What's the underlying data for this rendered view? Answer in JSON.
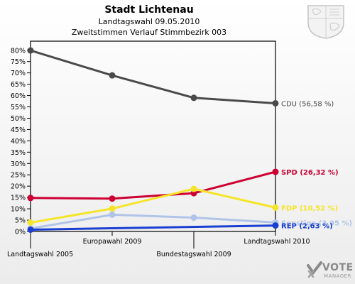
{
  "header": {
    "title": "Stadt Lichtenau",
    "subtitle": "Landtagswahl 09.05.2010",
    "subtitle2": "Zweitstimmen Verlauf Stimmbezirk 003"
  },
  "brand": {
    "word1": "VOTE",
    "word2": "MANAGER"
  },
  "chart_data": {
    "type": "line",
    "categories": [
      "Landtagswahl 2005",
      "Europawahl 2009",
      "Bundestagswahl 2009",
      "Landtagswahl 2010"
    ],
    "y_ticks": [
      "0%",
      "5%",
      "10%",
      "15%",
      "20%",
      "25%",
      "30%",
      "35%",
      "40%",
      "45%",
      "50%",
      "55%",
      "60%",
      "65%",
      "70%",
      "75%",
      "80%"
    ],
    "ylim": [
      0,
      84
    ],
    "grid": false,
    "series": [
      {
        "name": "CDU",
        "color": "#4a4a4a",
        "values": [
          79.9,
          68.9,
          59.0,
          56.58
        ],
        "label": "CDU (56,58 %)"
      },
      {
        "name": "SPD",
        "color": "#cc0033",
        "values": [
          14.8,
          14.5,
          16.9,
          26.32
        ],
        "label": "SPD (26,32 %)"
      },
      {
        "name": "FDP",
        "color": "#f5e52a",
        "values": [
          3.9,
          10.1,
          18.8,
          10.52
        ],
        "label": "FDP (10,52 %)"
      },
      {
        "name": "Sonstige",
        "color": "#b0c4e8",
        "values": [
          1.3,
          7.4,
          6.1,
          3.95
        ],
        "label": "Sonstige (3,95 %)"
      },
      {
        "name": "REP",
        "color": "#1a3fd1",
        "values": [
          0.8,
          null,
          null,
          2.63
        ],
        "label": "REP (2,63 %)"
      }
    ]
  }
}
